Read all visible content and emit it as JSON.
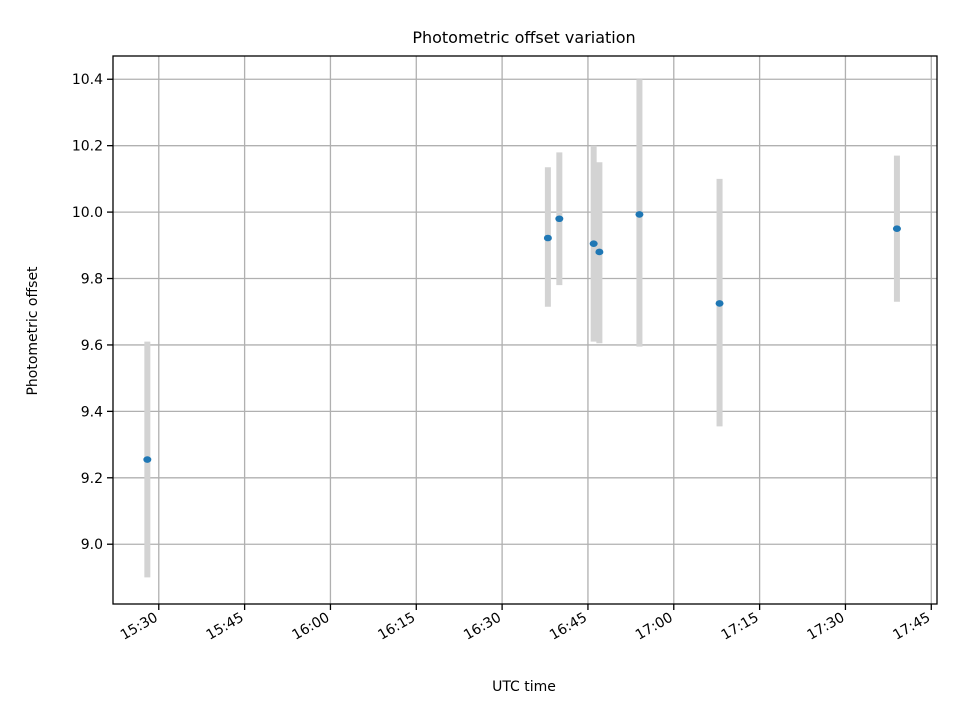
{
  "chart_data": {
    "type": "scatter",
    "title": "Photometric offset variation",
    "xlabel": "UTC time",
    "ylabel": "Photometric offset",
    "x_axis_kind": "time",
    "xlim": [
      "15:22",
      "17:46"
    ],
    "ylim": [
      8.82,
      10.47
    ],
    "xticks": [
      "15:30",
      "15:45",
      "16:00",
      "16:15",
      "16:30",
      "16:45",
      "17:00",
      "17:15",
      "17:30",
      "17:45"
    ],
    "yticks": [
      9.0,
      9.2,
      9.4,
      9.6,
      9.8,
      10.0,
      10.2,
      10.4
    ],
    "ytick_labels": [
      "9.0",
      "9.2",
      "9.4",
      "9.6",
      "9.8",
      "10.0",
      "10.2",
      "10.4"
    ],
    "grid": true,
    "legend": null,
    "marker_color": "#1f77b4",
    "errorbar_color": "#d3d3d3",
    "points": [
      {
        "time": "15:28",
        "value": 9.255,
        "err_low": 8.9,
        "err_high": 9.61
      },
      {
        "time": "16:38",
        "value": 9.922,
        "err_low": 9.715,
        "err_high": 10.135
      },
      {
        "time": "16:40",
        "value": 9.98,
        "err_low": 9.78,
        "err_high": 10.18
      },
      {
        "time": "16:46",
        "value": 9.905,
        "err_low": 9.61,
        "err_high": 10.2
      },
      {
        "time": "16:47",
        "value": 9.88,
        "err_low": 9.605,
        "err_high": 10.15
      },
      {
        "time": "16:54",
        "value": 9.993,
        "err_low": 9.595,
        "err_high": 10.4
      },
      {
        "time": "17:08",
        "value": 9.725,
        "err_low": 9.355,
        "err_high": 10.1
      },
      {
        "time": "17:39",
        "value": 9.95,
        "err_low": 9.73,
        "err_high": 10.17
      }
    ]
  }
}
